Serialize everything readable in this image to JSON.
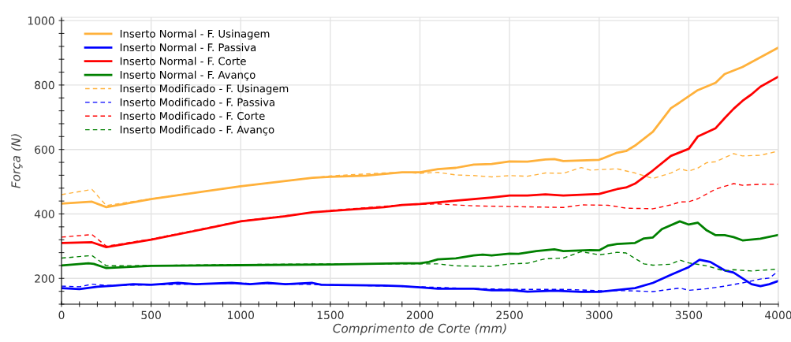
{
  "chart_data": {
    "type": "line",
    "xlabel": "Comprimento de Corte (mm)",
    "ylabel": "Força (N)",
    "xlim": [
      0,
      4000
    ],
    "ylim": [
      120,
      1010
    ],
    "xticks": [
      0,
      {
        "value": 100,
        "label": null
      },
      {
        "value": 200,
        "label": null
      },
      {
        "value": 300,
        "label": null
      },
      {
        "value": 400,
        "label": null
      },
      500,
      {
        "value": 600,
        "label": null
      },
      {
        "value": 700,
        "label": null
      },
      {
        "value": 800,
        "label": null
      },
      {
        "value": 900,
        "label": null
      },
      1000,
      {
        "value": 1100,
        "label": null
      },
      {
        "value": 1200,
        "label": null
      },
      {
        "value": 1300,
        "label": null
      },
      {
        "value": 1400,
        "label": null
      },
      1500,
      {
        "value": 1600,
        "label": null
      },
      {
        "value": 1700,
        "label": null
      },
      {
        "value": 1800,
        "label": null
      },
      {
        "value": 1900,
        "label": null
      },
      2000,
      {
        "value": 2100,
        "label": null
      },
      {
        "value": 2200,
        "label": null
      },
      {
        "value": 2300,
        "label": null
      },
      {
        "value": 2400,
        "label": null
      },
      2500,
      {
        "value": 2600,
        "label": null
      },
      {
        "value": 2700,
        "label": null
      },
      {
        "value": 2800,
        "label": null
      },
      {
        "value": 2900,
        "label": null
      },
      3000,
      {
        "value": 3100,
        "label": null
      },
      {
        "value": 3200,
        "label": null
      },
      {
        "value": 3300,
        "label": null
      },
      {
        "value": 3400,
        "label": null
      },
      3500,
      {
        "value": 3600,
        "label": null
      },
      {
        "value": 3700,
        "label": null
      },
      {
        "value": 3800,
        "label": null
      },
      {
        "value": 3900,
        "label": null
      },
      4000
    ],
    "yticks": [
      {
        "value": 120,
        "label": null
      },
      {
        "value": 160,
        "label": null
      },
      200,
      {
        "value": 240,
        "label": null
      },
      {
        "value": 280,
        "label": null
      },
      {
        "value": 320,
        "label": null
      },
      {
        "value": 360,
        "label": null
      },
      400,
      {
        "value": 440,
        "label": null
      },
      {
        "value": 480,
        "label": null
      },
      {
        "value": 520,
        "label": null
      },
      {
        "value": 560,
        "label": null
      },
      600,
      {
        "value": 640,
        "label": null
      },
      {
        "value": 680,
        "label": null
      },
      {
        "value": 720,
        "label": null
      },
      {
        "value": 760,
        "label": null
      },
      800,
      {
        "value": 840,
        "label": null
      },
      {
        "value": 880,
        "label": null
      },
      {
        "value": 920,
        "label": null
      },
      {
        "value": 960,
        "label": null
      },
      1000
    ],
    "grid": true,
    "legend": "top left",
    "series": [
      {
        "name": "Inserto Normal - F. Usinagem",
        "color": "#ffb13b",
        "line_style": "solid",
        "x": [
          0,
          170,
          250,
          500,
          1000,
          1400,
          1500,
          1700,
          1900,
          2000,
          2100,
          2200,
          2300,
          2400,
          2500,
          2600,
          2700,
          2750,
          2800,
          3000,
          3100,
          3150,
          3200,
          3300,
          3400,
          3450,
          3550,
          3650,
          3700,
          3800,
          4000
        ],
        "values": [
          432,
          438,
          421,
          446,
          486,
          512,
          515,
          519,
          529,
          529,
          539,
          543,
          553,
          555,
          563,
          562,
          569,
          570,
          564,
          568,
          590,
          595,
          612,
          655,
          728,
          746,
          784,
          807,
          834,
          856,
          916
        ]
      },
      {
        "name": "Inserto Normal - F. Passiva",
        "color": "#0000ff",
        "line_style": "solid",
        "x": [
          0,
          100,
          200,
          300,
          400,
          500,
          650,
          750,
          950,
          1050,
          1150,
          1250,
          1400,
          1450,
          1800,
          1900,
          2000,
          2100,
          2300,
          2400,
          2500,
          2600,
          2750,
          2900,
          3000,
          3200,
          3300,
          3400,
          3500,
          3560,
          3620,
          3700,
          3750,
          3850,
          3900,
          3950,
          4000
        ],
        "values": [
          170,
          167,
          174,
          178,
          182,
          180,
          186,
          182,
          186,
          182,
          186,
          182,
          186,
          180,
          178,
          176,
          172,
          168,
          168,
          163,
          164,
          159,
          162,
          158,
          158,
          170,
          186,
          211,
          235,
          258,
          251,
          225,
          218,
          182,
          176,
          182,
          192
        ]
      },
      {
        "name": "Inserto Normal - F. Corte",
        "color": "#ff0000",
        "line_style": "solid",
        "x": [
          0,
          170,
          250,
          500,
          750,
          1000,
          1250,
          1400,
          1600,
          1800,
          1900,
          2000,
          2200,
          2400,
          2500,
          2600,
          2700,
          2800,
          3000,
          3100,
          3150,
          3200,
          3300,
          3400,
          3500,
          3550,
          3650,
          3700,
          3750,
          3800,
          3850,
          3900,
          4000
        ],
        "values": [
          310,
          312,
          297,
          320,
          348,
          377,
          393,
          405,
          413,
          421,
          428,
          431,
          441,
          451,
          457,
          457,
          461,
          457,
          462,
          477,
          482,
          494,
          535,
          580,
          602,
          640,
          666,
          697,
          726,
          751,
          771,
          795,
          826
        ]
      },
      {
        "name": "Inserto Normal - F. Avanço",
        "color": "#008000",
        "line_style": "solid",
        "x": [
          0,
          150,
          180,
          250,
          500,
          1000,
          1500,
          1900,
          2000,
          2050,
          2100,
          2200,
          2300,
          2350,
          2400,
          2500,
          2550,
          2650,
          2750,
          2800,
          2950,
          3000,
          3050,
          3100,
          3200,
          3250,
          3300,
          3350,
          3450,
          3500,
          3550,
          3600,
          3650,
          3700,
          3750,
          3800,
          3900,
          4000
        ],
        "values": [
          240,
          247,
          245,
          232,
          239,
          241,
          243,
          247,
          247,
          251,
          259,
          262,
          271,
          274,
          271,
          277,
          276,
          285,
          290,
          285,
          288,
          287,
          302,
          307,
          310,
          324,
          327,
          353,
          377,
          367,
          373,
          349,
          334,
          334,
          328,
          318,
          323,
          335
        ]
      },
      {
        "name": "Inserto Modificado - F. Usinagem",
        "color": "#ffb13b",
        "line_style": "dashed",
        "x": [
          0,
          170,
          250,
          500,
          1000,
          1500,
          1800,
          1900,
          2000,
          2100,
          2200,
          2300,
          2400,
          2500,
          2600,
          2700,
          2800,
          2900,
          2950,
          3100,
          3200,
          3300,
          3400,
          3450,
          3500,
          3550,
          3600,
          3650,
          3750,
          3800,
          3900,
          4000
        ],
        "values": [
          460,
          476,
          426,
          447,
          486,
          518,
          527,
          529,
          526,
          529,
          521,
          519,
          515,
          519,
          517,
          527,
          526,
          544,
          536,
          540,
          527,
          510,
          527,
          540,
          533,
          542,
          559,
          562,
          587,
          580,
          582,
          595
        ]
      },
      {
        "name": "Inserto Modificado - F. Passiva",
        "color": "#0000ff",
        "line_style": "dashed",
        "x": [
          0,
          100,
          170,
          250,
          500,
          1000,
          1500,
          2000,
          2200,
          2500,
          2800,
          3000,
          3150,
          3300,
          3450,
          3500,
          3600,
          3700,
          3800,
          3900,
          3950,
          4000
        ],
        "values": [
          176,
          174,
          182,
          178,
          180,
          185,
          180,
          174,
          170,
          166,
          166,
          162,
          162,
          159,
          170,
          163,
          168,
          176,
          186,
          198,
          201,
          223
        ]
      },
      {
        "name": "Inserto Modificado - F. Corte",
        "color": "#ff0000",
        "line_style": "dashed",
        "x": [
          0,
          170,
          250,
          500,
          1000,
          1500,
          1900,
          2000,
          2100,
          2300,
          2500,
          2700,
          2800,
          2900,
          3050,
          3150,
          3300,
          3400,
          3450,
          3500,
          3550,
          3650,
          3750,
          3800,
          3900,
          4000
        ],
        "values": [
          328,
          336,
          300,
          322,
          378,
          411,
          428,
          430,
          431,
          425,
          423,
          421,
          420,
          428,
          427,
          418,
          416,
          428,
          437,
          438,
          447,
          477,
          494,
          489,
          492,
          492
        ]
      },
      {
        "name": "Inserto Modificado - F. Avanço",
        "color": "#008000",
        "line_style": "dashed",
        "x": [
          0,
          170,
          250,
          500,
          1000,
          1500,
          2000,
          2100,
          2200,
          2400,
          2500,
          2600,
          2700,
          2800,
          2900,
          3000,
          3100,
          3150,
          3250,
          3300,
          3400,
          3450,
          3500,
          3600,
          3700,
          3750,
          3850,
          4000
        ],
        "values": [
          263,
          271,
          239,
          240,
          243,
          245,
          245,
          245,
          239,
          237,
          245,
          247,
          261,
          263,
          283,
          273,
          281,
          279,
          245,
          241,
          244,
          257,
          248,
          239,
          223,
          227,
          223,
          229
        ]
      }
    ]
  }
}
